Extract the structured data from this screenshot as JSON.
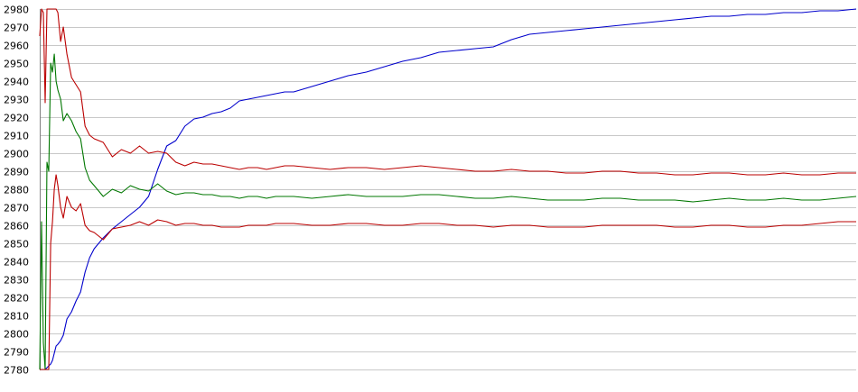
{
  "chart_data": {
    "type": "line",
    "title": "",
    "xlabel": "",
    "ylabel": "",
    "ylim": [
      2780,
      2980
    ],
    "yticks": [
      2780,
      2790,
      2800,
      2810,
      2820,
      2830,
      2840,
      2850,
      2860,
      2870,
      2880,
      2890,
      2900,
      2910,
      2920,
      2930,
      2940,
      2950,
      2960,
      2970,
      2980
    ],
    "grid": true,
    "legend": "none",
    "x": [
      0,
      2,
      4,
      6,
      8,
      10,
      12,
      14,
      16,
      18,
      20,
      23,
      26,
      30,
      35,
      40,
      45,
      50,
      55,
      60,
      70,
      80,
      90,
      100,
      110,
      120,
      130,
      140,
      150,
      160,
      170,
      180,
      190,
      200,
      210,
      220,
      230,
      240,
      250,
      260,
      270,
      280,
      300,
      320,
      340,
      360,
      380,
      400,
      420,
      440,
      460,
      480,
      500,
      520,
      540,
      560,
      580,
      600,
      620,
      640,
      660,
      680,
      700,
      720,
      740,
      760,
      780,
      800,
      820,
      840,
      860,
      880,
      900
    ],
    "series": [
      {
        "color": "#0000cc",
        "values": [
          2780,
          2780,
          2780,
          2780,
          2781,
          2782,
          2783,
          2785,
          2789,
          2793,
          2794,
          2796,
          2799,
          2808,
          2812,
          2818,
          2823,
          2834,
          2842,
          2847,
          2853,
          2858,
          2862,
          2866,
          2870,
          2876,
          2891,
          2904,
          2907,
          2915,
          2919,
          2920,
          2922,
          2923,
          2925,
          2929,
          2930,
          2931,
          2932,
          2933,
          2934,
          2934,
          2937,
          2940,
          2943,
          2945,
          2948,
          2951,
          2953,
          2956,
          2957,
          2958,
          2959,
          2963,
          2966,
          2967,
          2968,
          2969,
          2970,
          2971,
          2972,
          2973,
          2974,
          2975,
          2976,
          2976,
          2977,
          2977,
          2978,
          2978,
          2979,
          2979,
          2980
        ]
      },
      {
        "color": "#bb0000",
        "values": [
          2965,
          2980,
          2978,
          2928,
          2980,
          2980,
          2980,
          2980,
          2980,
          2980,
          2978,
          2962,
          2970,
          2955,
          2942,
          2938,
          2934,
          2915,
          2910,
          2908,
          2906,
          2898,
          2902,
          2900,
          2904,
          2900,
          2901,
          2900,
          2895,
          2893,
          2895,
          2894,
          2894,
          2893,
          2892,
          2891,
          2892,
          2892,
          2891,
          2892,
          2893,
          2893,
          2892,
          2891,
          2892,
          2892,
          2891,
          2892,
          2893,
          2892,
          2891,
          2890,
          2890,
          2891,
          2890,
          2890,
          2889,
          2889,
          2890,
          2890,
          2889,
          2889,
          2888,
          2888,
          2889,
          2889,
          2888,
          2888,
          2889,
          2888,
          2888,
          2889,
          2889
        ]
      },
      {
        "color": "#007700",
        "values": [
          2780,
          2862,
          2795,
          2780,
          2895,
          2890,
          2950,
          2945,
          2955,
          2940,
          2935,
          2930,
          2918,
          2922,
          2918,
          2912,
          2908,
          2892,
          2885,
          2882,
          2876,
          2880,
          2878,
          2882,
          2880,
          2879,
          2883,
          2879,
          2877,
          2878,
          2878,
          2877,
          2877,
          2876,
          2876,
          2875,
          2876,
          2876,
          2875,
          2876,
          2876,
          2876,
          2875,
          2876,
          2877,
          2876,
          2876,
          2876,
          2877,
          2877,
          2876,
          2875,
          2875,
          2876,
          2875,
          2874,
          2874,
          2874,
          2875,
          2875,
          2874,
          2874,
          2874,
          2873,
          2874,
          2875,
          2874,
          2874,
          2875,
          2874,
          2874,
          2875,
          2876
        ]
      },
      {
        "color": "#bb0000",
        "values": [
          2780,
          2780,
          2780,
          2780,
          2780,
          2780,
          2850,
          2862,
          2880,
          2888,
          2882,
          2870,
          2864,
          2876,
          2870,
          2868,
          2872,
          2860,
          2857,
          2856,
          2852,
          2858,
          2859,
          2860,
          2862,
          2860,
          2863,
          2862,
          2860,
          2861,
          2861,
          2860,
          2860,
          2859,
          2859,
          2859,
          2860,
          2860,
          2860,
          2861,
          2861,
          2861,
          2860,
          2860,
          2861,
          2861,
          2860,
          2860,
          2861,
          2861,
          2860,
          2860,
          2859,
          2860,
          2860,
          2859,
          2859,
          2859,
          2860,
          2860,
          2860,
          2860,
          2859,
          2859,
          2860,
          2860,
          2859,
          2859,
          2860,
          2860,
          2861,
          2862,
          2862
        ]
      }
    ]
  }
}
